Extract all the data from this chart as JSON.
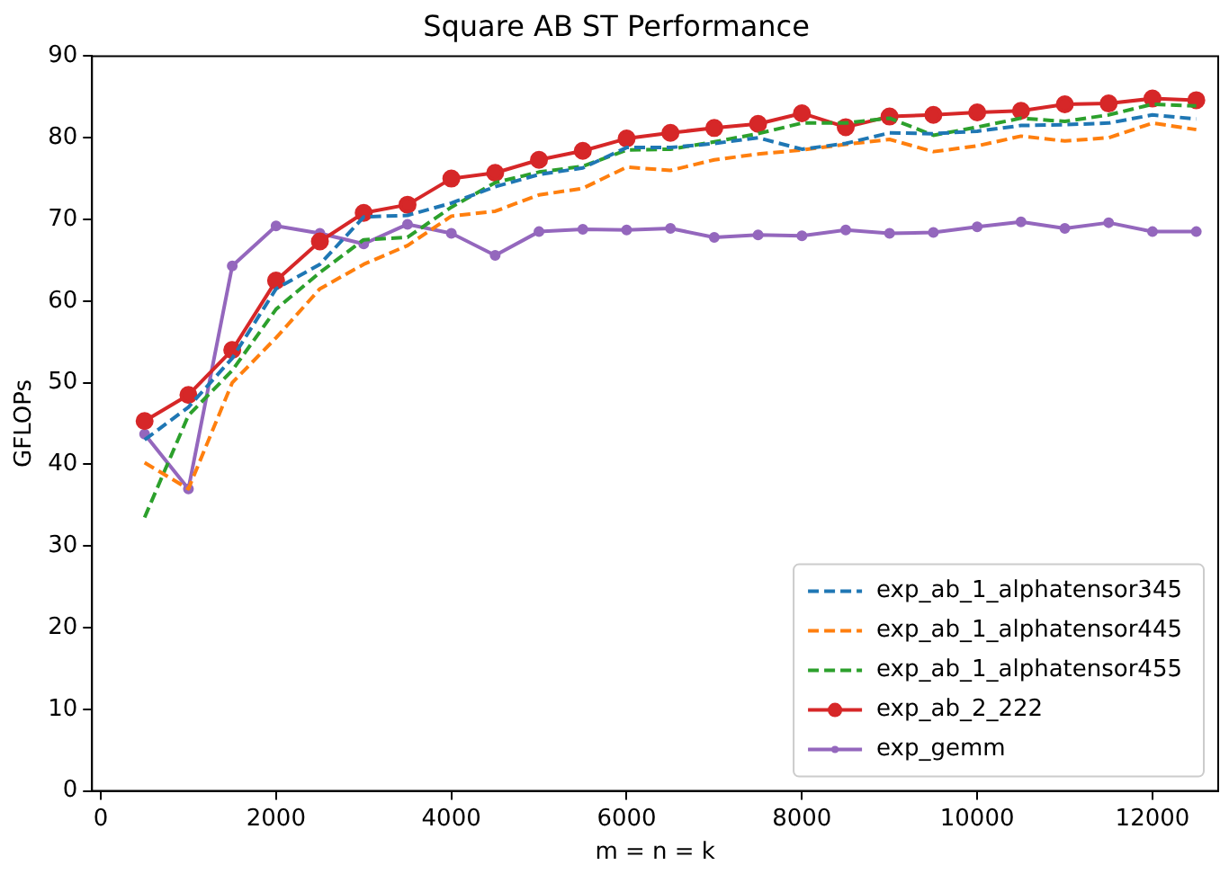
{
  "chart_data": {
    "type": "line",
    "title": "Square AB ST Performance",
    "xlabel": "m = n = k",
    "ylabel": "GFLOPs",
    "x": [
      500,
      1000,
      1500,
      2000,
      2500,
      3000,
      3500,
      4000,
      4500,
      5000,
      5500,
      6000,
      6500,
      7000,
      7500,
      8000,
      8500,
      9000,
      9500,
      10000,
      10500,
      11000,
      11500,
      12000,
      12500
    ],
    "xlim": [
      -100,
      12750
    ],
    "xticks": [
      0,
      2000,
      4000,
      6000,
      8000,
      10000,
      12000
    ],
    "ylim": [
      0,
      90
    ],
    "yticks": [
      0,
      10,
      20,
      30,
      40,
      50,
      60,
      70,
      80,
      90
    ],
    "grid": false,
    "legend": "bottom right",
    "series": [
      {
        "name": "exp_ab_1_alphatensor345",
        "color": "#1f77b4",
        "marker": "none",
        "line_style": "dashed",
        "values": [
          43,
          47,
          53,
          61.5,
          64.5,
          70.3,
          70.5,
          72,
          74,
          75.5,
          76.3,
          78.8,
          78.8,
          79.3,
          80,
          78.6,
          79.3,
          80.6,
          80.5,
          80.8,
          81.5,
          81.6,
          81.8,
          82.8,
          82.3
        ]
      },
      {
        "name": "exp_ab_1_alphatensor445",
        "color": "#ff7f0e",
        "marker": "none",
        "line_style": "dashed",
        "values": [
          40.2,
          37,
          50,
          55.5,
          61.5,
          64.5,
          66.8,
          70.4,
          71,
          73,
          73.8,
          76.4,
          76,
          77.3,
          78,
          78.5,
          79.2,
          79.8,
          78.3,
          79,
          80.2,
          79.6,
          80,
          81.8,
          81
        ]
      },
      {
        "name": "exp_ab_1_alphatensor455",
        "color": "#2ca02c",
        "marker": "none",
        "line_style": "dashed",
        "values": [
          33.5,
          46,
          51.5,
          59,
          63.5,
          67.5,
          67.8,
          71.5,
          74.5,
          75.8,
          76.5,
          78.5,
          78.6,
          79.5,
          80.5,
          81.8,
          81.8,
          82.4,
          80.3,
          81.3,
          82.4,
          82,
          82.8,
          84.1,
          83.9
        ]
      },
      {
        "name": "exp_ab_2_222",
        "color": "#d62728",
        "marker": "circle",
        "line_style": "solid",
        "values": [
          45.3,
          48.5,
          54,
          62.5,
          67.3,
          70.8,
          71.8,
          75,
          75.7,
          77.3,
          78.4,
          79.9,
          80.6,
          81.2,
          81.7,
          83,
          81.3,
          82.6,
          82.8,
          83.1,
          83.3,
          84.1,
          84.2,
          84.8,
          84.6
        ]
      },
      {
        "name": "exp_gemm",
        "color": "#9467bd",
        "marker": "circle",
        "line_style": "solid",
        "values": [
          43.7,
          37,
          64.3,
          69.2,
          68.3,
          67,
          69.4,
          68.3,
          65.6,
          68.5,
          68.8,
          68.7,
          68.9,
          67.8,
          68.1,
          68,
          68.7,
          68.3,
          68.4,
          69.1,
          69.7,
          68.9,
          69.6,
          68.5,
          68.5
        ]
      }
    ]
  }
}
